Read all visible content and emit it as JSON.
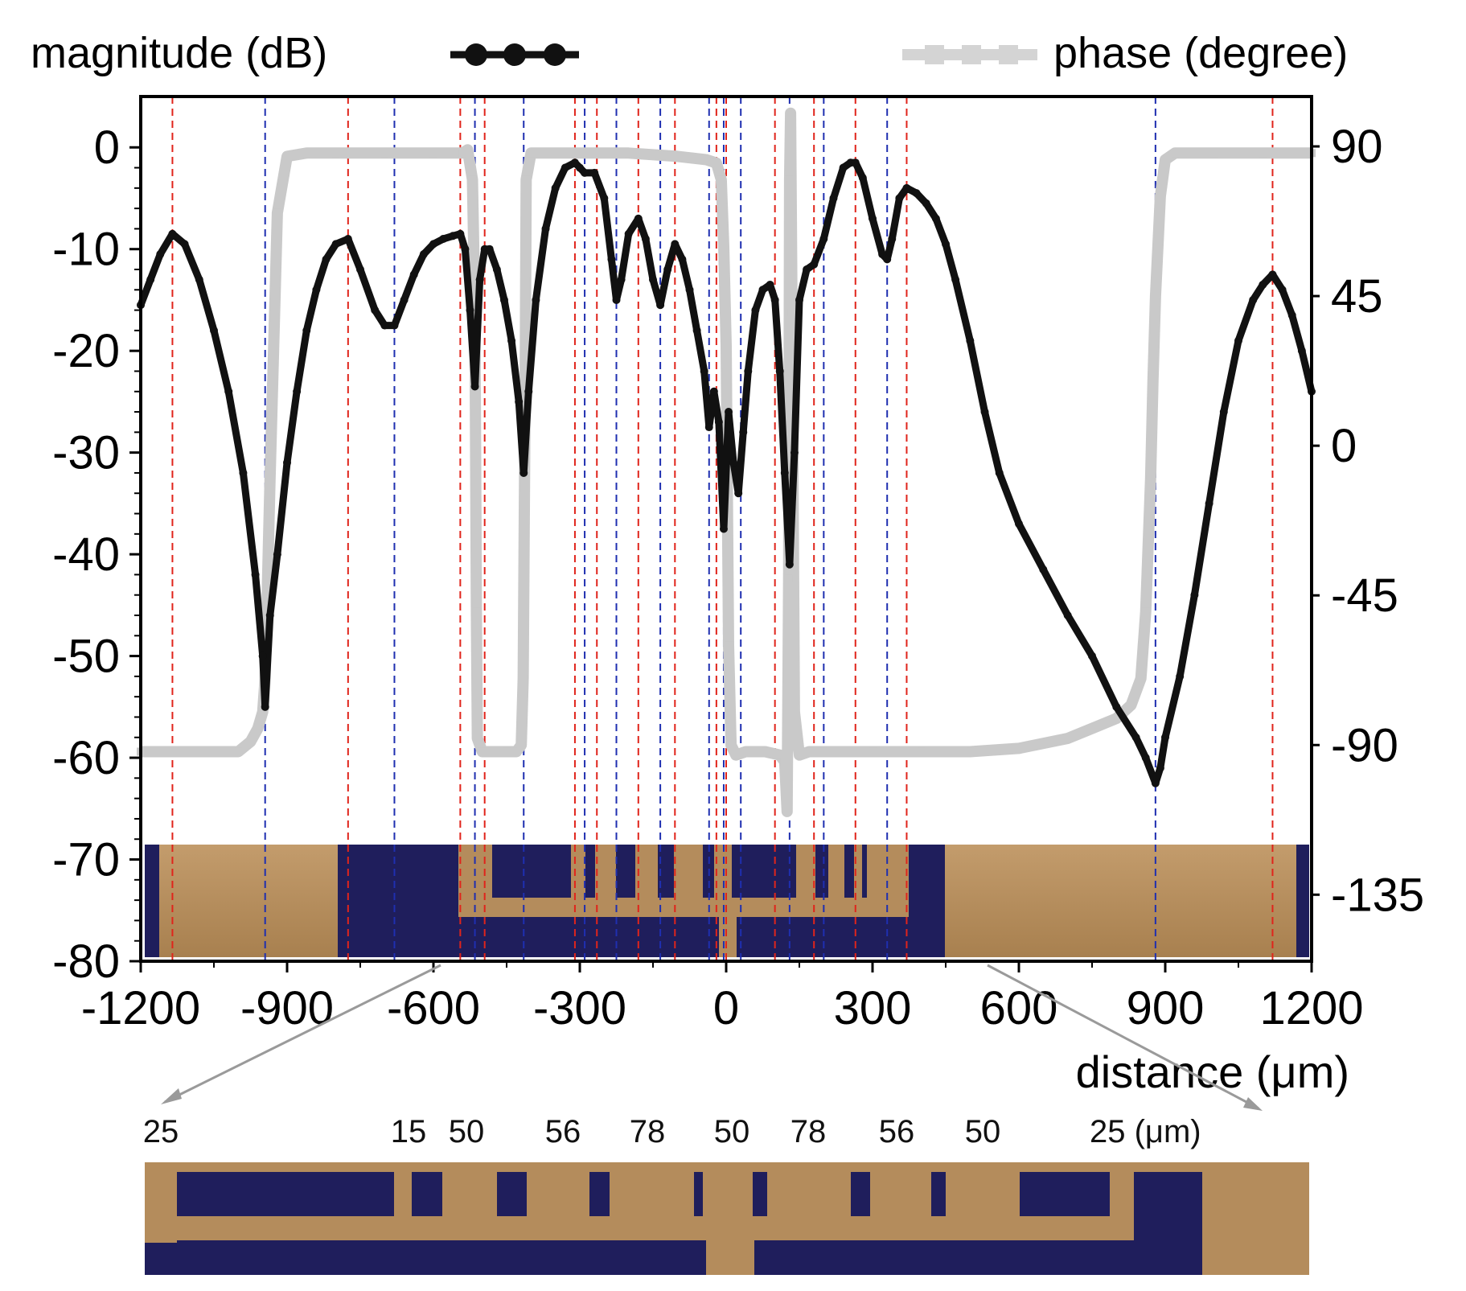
{
  "legend": {
    "magnitude": "magnitude (dB)",
    "phase": "phase (degree)"
  },
  "colors": {
    "magnitude": "#111111",
    "phase": "#c9c9c9",
    "peak_line": "#e0241b",
    "dip_line": "#1f2fb0",
    "gold": "#b48c5c",
    "navy": "#1f1e5c",
    "leader": "#999999"
  },
  "inset_labels": [
    "25",
    "15",
    "50",
    "56",
    "78",
    "50",
    "78",
    "56",
    "50",
    "25 (μm)"
  ],
  "chart_data": {
    "type": "line",
    "title": "",
    "xlabel": "distance (μm)",
    "ylabel_left": "",
    "ylabel_right": "",
    "xlim": [
      -1200,
      1200
    ],
    "ylim_left": [
      -80,
      5
    ],
    "ylim_right": [
      -155,
      105
    ],
    "x_ticks": [
      -1200,
      -900,
      -600,
      -300,
      0,
      300,
      600,
      900,
      1200
    ],
    "x_tick_labels": [
      "-1200",
      "-900",
      "-600",
      "-300",
      "0",
      "300",
      "600",
      "900",
      "1200"
    ],
    "y_ticks_left": [
      0,
      -10,
      -20,
      -30,
      -40,
      -50,
      -60,
      -70,
      -80
    ],
    "y_tick_labels_left": [
      "0",
      "-10",
      "-20",
      "-30",
      "-40",
      "-50",
      "-60",
      "-70",
      "-80"
    ],
    "y_ticks_right": [
      90,
      45,
      0,
      -45,
      -90,
      -135
    ],
    "y_tick_labels_right": [
      "90",
      "45",
      "0",
      "-45",
      "-90",
      "-135"
    ],
    "peak_lines_x": [
      -1135,
      -775,
      -545,
      -495,
      -310,
      -265,
      -180,
      -105,
      -20,
      0,
      100,
      180,
      265,
      370,
      1120
    ],
    "dip_lines_x": [
      -945,
      -680,
      -515,
      -415,
      -290,
      -225,
      -135,
      -35,
      -5,
      30,
      130,
      200,
      330,
      880
    ],
    "series": [
      {
        "name": "magnitude (dB)",
        "axis": "left",
        "x": [
          -1200,
          -1180,
          -1160,
          -1135,
          -1110,
          -1080,
          -1050,
          -1020,
          -990,
          -965,
          -950,
          -945,
          -935,
          -920,
          -900,
          -880,
          -860,
          -840,
          -820,
          -800,
          -775,
          -750,
          -720,
          -700,
          -680,
          -660,
          -640,
          -620,
          -600,
          -580,
          -560,
          -545,
          -535,
          -525,
          -515,
          -505,
          -495,
          -485,
          -470,
          -455,
          -440,
          -425,
          -415,
          -405,
          -390,
          -370,
          -350,
          -330,
          -310,
          -300,
          -290,
          -270,
          -250,
          -235,
          -225,
          -215,
          -200,
          -180,
          -165,
          -150,
          -135,
          -120,
          -105,
          -90,
          -75,
          -60,
          -45,
          -35,
          -25,
          -15,
          -5,
          5,
          15,
          25,
          35,
          45,
          60,
          75,
          90,
          100,
          110,
          120,
          130,
          140,
          150,
          165,
          180,
          200,
          220,
          240,
          255,
          265,
          280,
          300,
          320,
          330,
          340,
          355,
          370,
          390,
          410,
          430,
          450,
          470,
          500,
          530,
          560,
          600,
          650,
          700,
          750,
          800,
          840,
          860,
          880,
          890,
          900,
          930,
          960,
          990,
          1020,
          1050,
          1080,
          1100,
          1120,
          1140,
          1160,
          1180,
          1200
        ],
        "values": [
          -15.5,
          -13,
          -10.5,
          -8.5,
          -9.5,
          -13,
          -18,
          -24,
          -32,
          -42,
          -50,
          -55,
          -46,
          -40,
          -31,
          -24,
          -18,
          -14,
          -11,
          -9.5,
          -9,
          -12,
          -16,
          -17.5,
          -17.5,
          -15,
          -12.5,
          -10.5,
          -9.5,
          -9,
          -8.7,
          -8.5,
          -10,
          -16,
          -23.5,
          -13,
          -10,
          -10,
          -12,
          -15,
          -19,
          -25,
          -32,
          -24,
          -15,
          -8,
          -4,
          -2,
          -1.5,
          -2,
          -2.5,
          -2.5,
          -5,
          -11,
          -15,
          -13,
          -8.5,
          -7,
          -9,
          -13,
          -15.5,
          -12,
          -9.5,
          -11,
          -14,
          -18,
          -22,
          -27.5,
          -24,
          -27,
          -37.5,
          -26,
          -31,
          -34,
          -28,
          -22,
          -16,
          -14,
          -13.5,
          -15,
          -22,
          -32,
          -41,
          -30,
          -15,
          -12,
          -11.5,
          -9,
          -5,
          -2,
          -1.5,
          -1.5,
          -3,
          -7,
          -10.5,
          -11,
          -9,
          -5,
          -4,
          -4.5,
          -5.5,
          -7,
          -9.5,
          -13,
          -19,
          -26,
          -32,
          -37,
          -41.5,
          -46,
          -50,
          -55,
          -58,
          -60,
          -62.5,
          -61,
          -58,
          -52,
          -44,
          -35,
          -26,
          -19,
          -15,
          -13.5,
          -12.5,
          -14,
          -16.5,
          -20,
          -24
        ]
      },
      {
        "name": "phase (degree)",
        "axis": "right",
        "x": [
          -1200,
          -1000,
          -975,
          -960,
          -950,
          -945,
          -935,
          -920,
          -900,
          -860,
          -800,
          -700,
          -600,
          -540,
          -530,
          -520,
          -515,
          -512,
          -510,
          -500,
          -450,
          -430,
          -420,
          -416,
          -412,
          -410,
          -400,
          -300,
          -200,
          -100,
          -40,
          -20,
          -10,
          -5,
          0,
          5,
          10,
          20,
          40,
          80,
          110,
          120,
          125,
          128,
          130,
          132,
          135,
          140,
          150,
          170,
          200,
          300,
          400,
          500,
          600,
          700,
          750,
          800,
          830,
          850,
          860,
          870,
          875,
          880,
          885,
          890,
          900,
          920,
          1000,
          1100,
          1200
        ],
        "values": [
          -92,
          -92,
          -89,
          -85,
          -80,
          -70,
          -10,
          70,
          87,
          88,
          88,
          88,
          88,
          88,
          89,
          80,
          40,
          -50,
          -88,
          -92,
          -92,
          -92,
          -90,
          -70,
          20,
          80,
          88,
          88,
          88,
          87,
          86,
          85,
          80,
          60,
          30,
          -60,
          -90,
          -93,
          -92,
          -92,
          -93,
          -95,
          -110,
          -40,
          80,
          100,
          40,
          -80,
          -93,
          -92,
          -92,
          -92,
          -92,
          -92,
          -91,
          -88,
          -85,
          -82,
          -78,
          -70,
          -50,
          -10,
          20,
          45,
          60,
          75,
          86,
          88,
          88,
          88,
          88
        ]
      }
    ],
    "legend_position": "top"
  }
}
